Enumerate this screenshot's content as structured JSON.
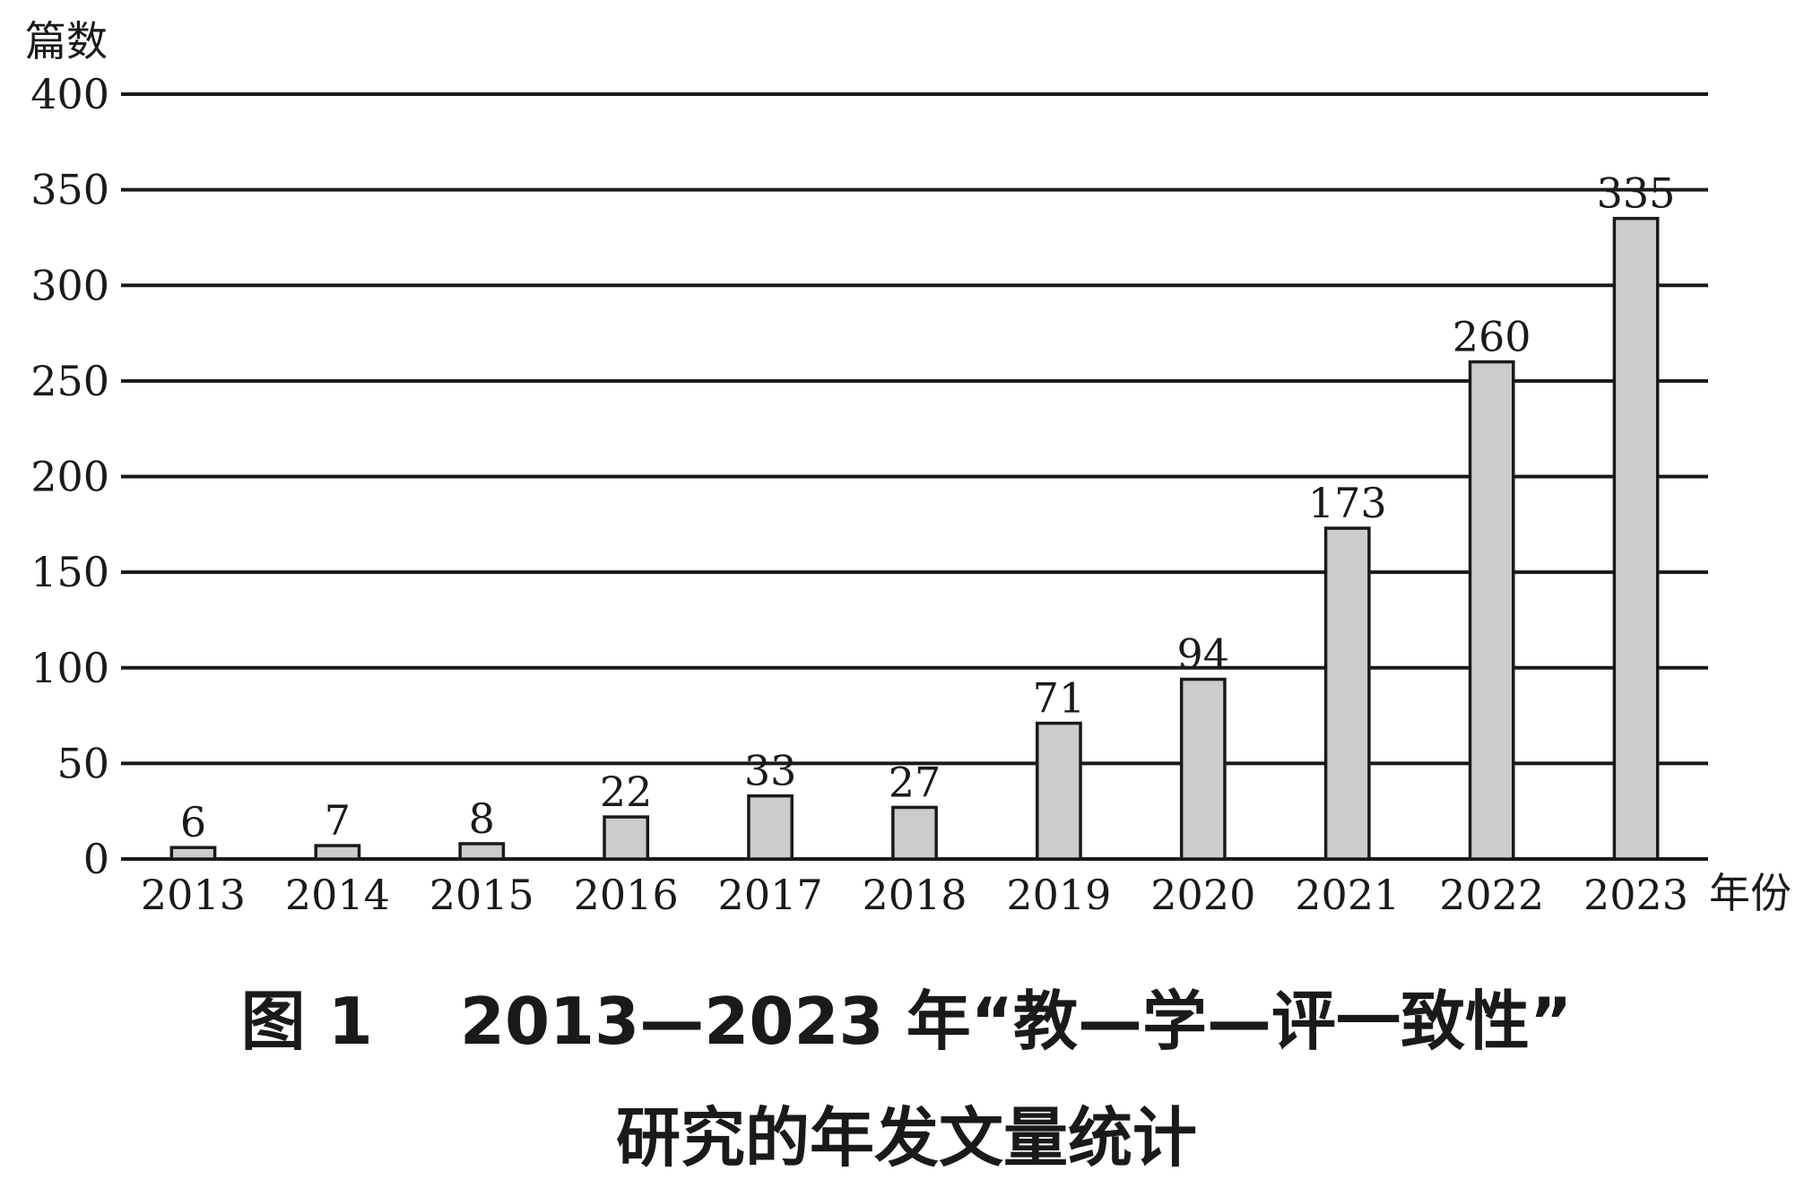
{
  "chart_data": {
    "type": "bar",
    "ylabel": "篇数",
    "xlabel": "年份",
    "ylim": [
      0,
      400
    ],
    "yticks": [
      0,
      50,
      100,
      150,
      200,
      250,
      300,
      350,
      400
    ],
    "grid": true,
    "categories": [
      "2013",
      "2014",
      "2015",
      "2016",
      "2017",
      "2018",
      "2019",
      "2020",
      "2021",
      "2022",
      "2023"
    ],
    "values": [
      6,
      7,
      8,
      22,
      33,
      27,
      71,
      94,
      173,
      260,
      335
    ],
    "bar_color": "#cccccc",
    "bar_outline": "#1a1a1a"
  },
  "caption": {
    "line1": "图 1　 2013—2023 年“教—学—评一致性”",
    "line2": "研究的年发文量统计"
  }
}
